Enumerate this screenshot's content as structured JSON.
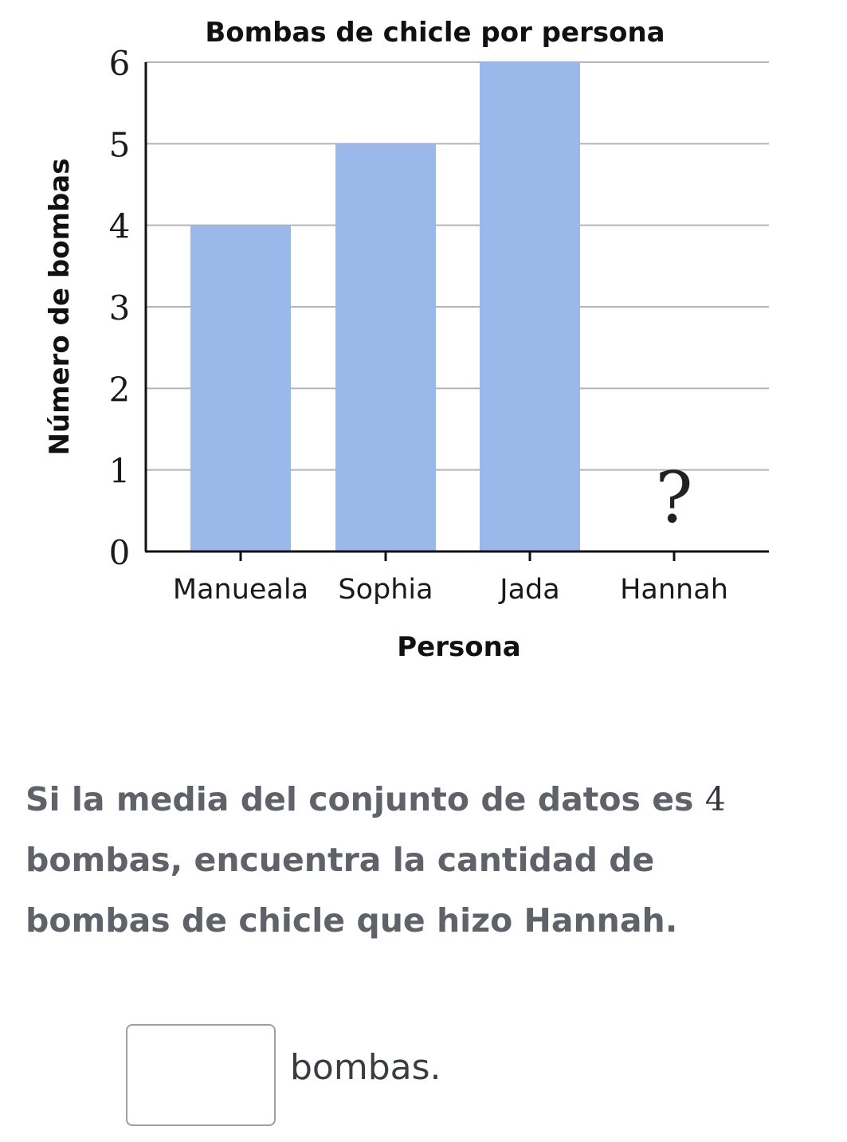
{
  "chart_data": {
    "type": "bar",
    "title": "Bombas de chicle por persona",
    "xlabel": "Persona",
    "ylabel": "Número de bombas",
    "categories": [
      "Manueala",
      "Sophia",
      "Jada",
      "Hannah"
    ],
    "values": [
      4,
      5,
      6,
      null
    ],
    "unknown_marker": "?",
    "ylim": [
      0,
      6
    ],
    "yticks": [
      "0",
      "1",
      "2",
      "3",
      "4",
      "5",
      "6"
    ],
    "grid": true,
    "bar_color": "#9bb8ea"
  },
  "question": {
    "before": "Si la media del conjunto de datos es ",
    "number": "4",
    "after": " bombas, encuentra la cantidad de bombas de chicle que hizo Hannah."
  },
  "answer": {
    "value": "",
    "unit": "bombas."
  }
}
